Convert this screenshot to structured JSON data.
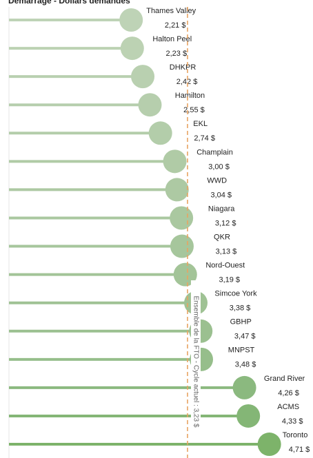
{
  "chart_data": {
    "type": "lollipop",
    "title": "Démarrage - Dollars demandés",
    "categories": [
      "Thames Valley",
      "Halton Peel",
      "DHKPR",
      "Hamilton",
      "EKL",
      "Champlain",
      "WWD",
      "Niagara",
      "QKR",
      "Nord-Ouest",
      "Simcoe York",
      "GBHP",
      "MNPST",
      "Grand River",
      "ACMS",
      "Toronto"
    ],
    "values": [
      2.21,
      2.23,
      2.42,
      2.55,
      2.74,
      3.0,
      3.04,
      3.12,
      3.13,
      3.19,
      3.38,
      3.47,
      3.48,
      4.26,
      4.33,
      4.71
    ],
    "value_labels": [
      "2,21 $",
      "2,23 $",
      "2,42 $",
      "2,55 $",
      "2,74 $",
      "3,00 $",
      "3,04 $",
      "3,12 $",
      "3,13 $",
      "3,19 $",
      "3,38 $",
      "3,47 $",
      "3,48 $",
      "4,26 $",
      "4,33 $",
      "4,71 $"
    ],
    "colors": [
      "#bed3b6",
      "#bcd2b3",
      "#b9d0b0",
      "#b6cead",
      "#b3cdaa",
      "#b0cba6",
      "#adc9a3",
      "#aac8a0",
      "#a6c69c",
      "#a3c498",
      "#9fc294",
      "#9bc090",
      "#96be8b",
      "#8bb97f",
      "#84b676",
      "#7db36a"
    ],
    "xlim": [
      0,
      5.5
    ],
    "reference_line": {
      "value": 3.23,
      "label": "Ensemble de la FTO - Cycle actuel : 3,23 $",
      "color": "#e8a462"
    }
  }
}
